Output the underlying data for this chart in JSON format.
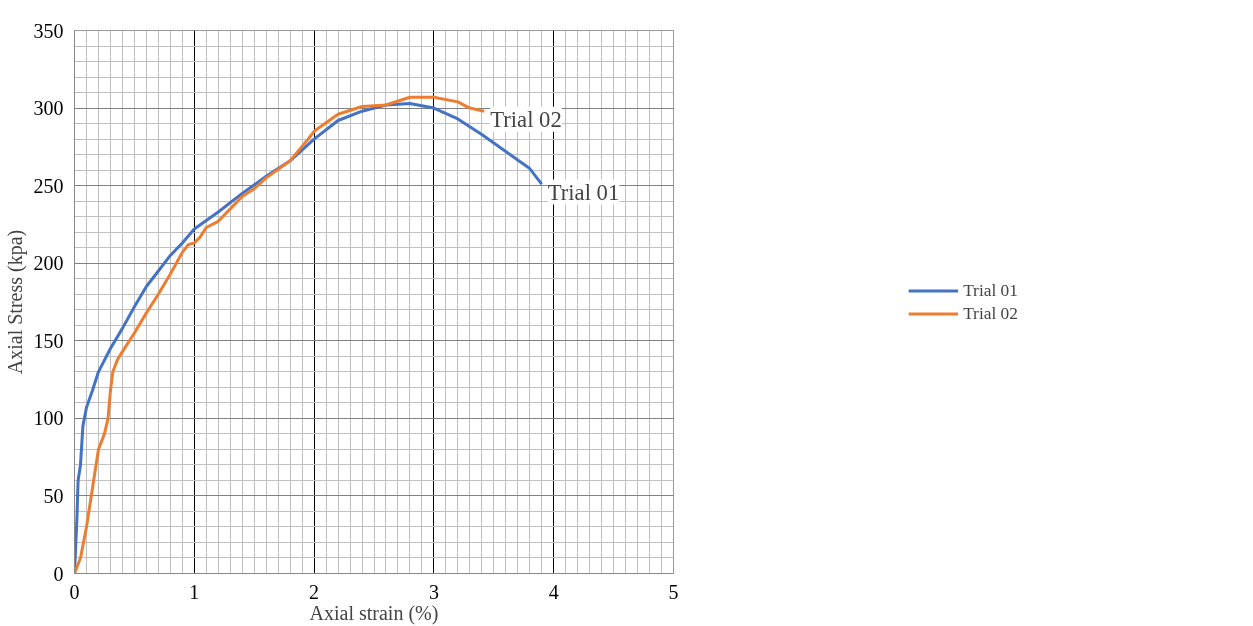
{
  "chart_data": {
    "type": "line",
    "xlabel": "Axial strain (%)",
    "ylabel": "Axial Stress (kpa)",
    "xlim": [
      0,
      5
    ],
    "xticks": [
      0,
      1,
      2,
      3,
      4,
      5
    ],
    "ylim": [
      0,
      350
    ],
    "yticks": [
      0,
      50,
      100,
      150,
      200,
      250,
      300,
      350
    ],
    "grid": true,
    "legend": "right",
    "marker": "none",
    "line_style": "solid",
    "series": [
      {
        "name": "Trial 01",
        "color": "#4472c4",
        "x": [
          0,
          0.02,
          0.03,
          0.05,
          0.07,
          0.1,
          0.15,
          0.2,
          0.3,
          0.4,
          0.5,
          0.6,
          0.7,
          0.8,
          0.9,
          1.0,
          1.2,
          1.4,
          1.6,
          1.8,
          2.0,
          2.2,
          2.4,
          2.6,
          2.8,
          3.0,
          3.2,
          3.4,
          3.6,
          3.8,
          3.9
        ],
        "values": [
          0,
          35,
          60,
          70,
          95,
          107,
          118,
          130,
          145,
          158,
          172,
          185,
          195,
          205,
          213,
          222,
          233,
          245,
          256,
          266,
          280,
          292,
          298,
          302,
          303,
          300,
          293,
          283,
          272,
          261,
          251
        ]
      },
      {
        "name": "Trial 02",
        "color": "#ed7d31",
        "x": [
          0,
          0.05,
          0.1,
          0.15,
          0.2,
          0.25,
          0.28,
          0.3,
          0.32,
          0.36,
          0.4,
          0.5,
          0.6,
          0.7,
          0.8,
          0.9,
          0.95,
          1.0,
          1.05,
          1.1,
          1.2,
          1.3,
          1.4,
          1.5,
          1.6,
          1.8,
          1.95,
          2.0,
          2.2,
          2.4,
          2.6,
          2.8,
          3.0,
          3.2,
          3.3,
          3.42
        ],
        "values": [
          0,
          10,
          30,
          55,
          80,
          90,
          100,
          118,
          130,
          138,
          143,
          155,
          168,
          180,
          193,
          207,
          212,
          213,
          217,
          223,
          227,
          235,
          243,
          248,
          255,
          266,
          280,
          285,
          296,
          301,
          302,
          307,
          307,
          304,
          300,
          298
        ]
      }
    ],
    "annotations": [
      {
        "text": "Trial 02",
        "x": 3.42,
        "y": 298
      },
      {
        "text": "Trial 01",
        "x": 3.9,
        "y": 251
      }
    ]
  }
}
